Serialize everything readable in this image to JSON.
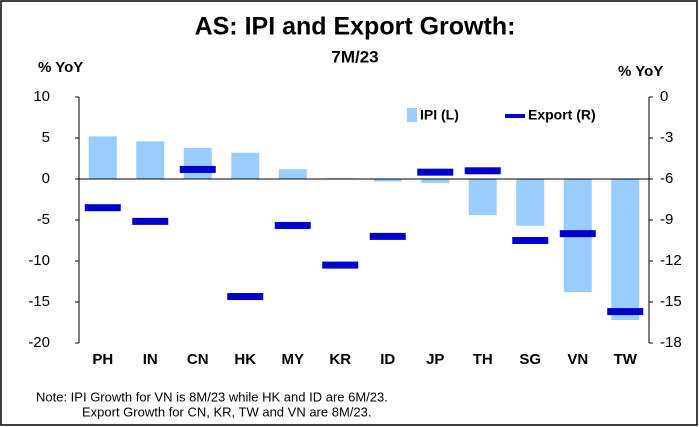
{
  "chart_data": {
    "type": "bar_marker",
    "title": "AS: IPI and Export Growth:",
    "subtitle": "7M/23",
    "y_label": "% YoY",
    "y2_label": "% YoY",
    "categories": [
      "PH",
      "IN",
      "CN",
      "HK",
      "MY",
      "KR",
      "ID",
      "JP",
      "TH",
      "SG",
      "VN",
      "TW"
    ],
    "series": [
      {
        "name": "IPI (L)",
        "color": "#99ccff",
        "values": [
          5.2,
          4.6,
          3.8,
          3.2,
          1.2,
          0.1,
          -0.3,
          -0.5,
          -4.4,
          -5.7,
          -13.8,
          -17.2
        ]
      },
      {
        "name": "Export (R)",
        "color": "#0000cc",
        "axis": "y2",
        "values": [
          -8.1,
          -9.1,
          -5.3,
          -14.6,
          -9.4,
          -12.3,
          -10.2,
          -5.5,
          -5.4,
          -10.5,
          -10.0,
          -15.7
        ]
      }
    ],
    "ylim": [
      -20,
      10
    ],
    "yticks": [
      -20,
      -15,
      -10,
      -5,
      0,
      5,
      10
    ],
    "y2lim": [
      -18,
      0
    ],
    "y2ticks": [
      -18,
      -15,
      -12,
      -9,
      -6,
      -3,
      0
    ],
    "legend": "top-right",
    "notes": [
      "Note: IPI Growth for VN is 8M/23 while HK and ID are 6M/23.",
      "Export Growth for CN, KR, TW and VN are 8M/23."
    ]
  }
}
